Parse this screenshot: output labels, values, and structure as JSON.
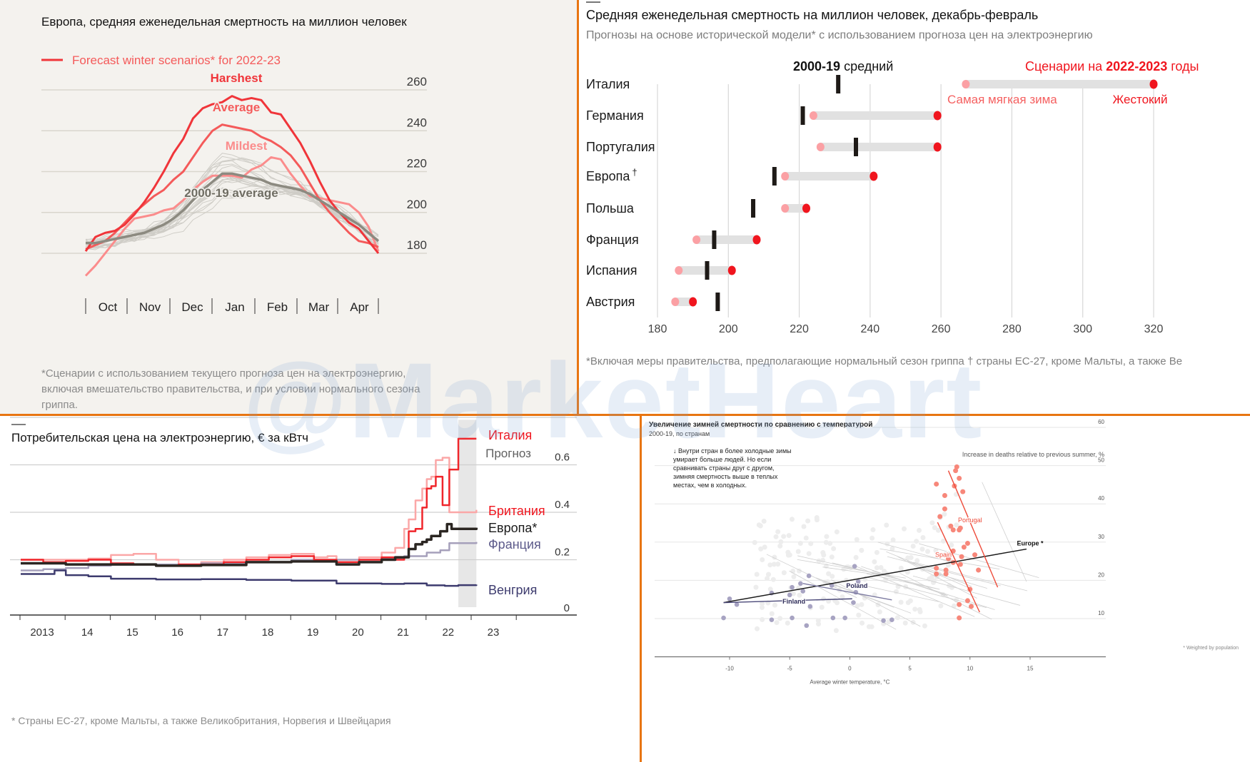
{
  "watermark": "@MarketHeart",
  "panels": {
    "mortality_curve": {
      "title": "Европа, средняя еженедельная смертность на миллион человек",
      "legend_label": "Forecast winter scenarios* for 2022-23",
      "footnote": [
        "*Сценарии с использованием текущего прогноза цен на электроэнергию,",
        "включая вмешательство правительства, и при условии нормального сезона",
        "гриппа."
      ]
    },
    "country_range": {
      "title": "Средняя еженедельная смертность на миллион человек, декабрь-февраль",
      "subtitle": "Прогнозы на основе исторической модели* с использованием прогноза цен на электроэнергию",
      "legend_avg_bold": "2000-19",
      "legend_avg_rest": " средний",
      "legend_scen_prefix": "Сценарии на ",
      "legend_scen_bold": "2022-2023",
      "legend_scen_suffix": " годы",
      "mildest_label": "Самая мягкая зима",
      "harshest_label": "Жестокий",
      "footnote": "*Включая меры правительства, предполагающие нормальный сезон гриппа † страны ЕС-27, кроме Мальты, а также Ве"
    },
    "electricity_price": {
      "title": "Потребительская цена на электроэнергию, € за кВтч",
      "forecast_label": "Прогноз",
      "footnote": "* Страны ЕС-27, кроме Мальты, а также Великобритания, Норвегия и Швейцария"
    },
    "temperature_scatter": {
      "title": "Увеличение зимней смертности по сравнению с температурой",
      "subtitle": "2000-19, по странам",
      "annotation": [
        "↓ Внутри стран в более холодные зимы",
        "умирает больше людей. Но если",
        "сравнивать страны друг с другом,",
        "зимняя смертность выше в теплых",
        "местах, чем в холодных."
      ],
      "weighted_note": "* Weighted by population"
    }
  },
  "chart_data": [
    {
      "type": "line",
      "title": "Европа, средняя еженедельная смертность на миллион человек",
      "xlabel": "",
      "ylabel": "",
      "x_ticks": [
        "Oct",
        "Nov",
        "Dec",
        "Jan",
        "Feb",
        "Mar",
        "Apr"
      ],
      "x_range_weeks": [
        0,
        30
      ],
      "yticks": [
        180,
        200,
        220,
        240,
        260
      ],
      "ylim": [
        170,
        265
      ],
      "grid": true,
      "series": [
        {
          "name": "Harshest",
          "color": "#f0353a",
          "values": [
            181,
            188,
            190,
            191,
            194,
            199,
            205,
            212,
            220,
            229,
            236,
            246,
            251,
            253,
            254,
            257,
            255,
            256,
            255,
            249,
            248,
            241,
            234,
            225,
            215,
            206,
            200,
            195,
            192,
            186,
            180
          ]
        },
        {
          "name": "Average",
          "color": "#f45a5a",
          "values": [
            182,
            184,
            186,
            190,
            195,
            200,
            204,
            208,
            211,
            216,
            220,
            227,
            234,
            240,
            243,
            242,
            241,
            240,
            237,
            235,
            232,
            228,
            222,
            214,
            206,
            200,
            195,
            190,
            186,
            185,
            183
          ]
        },
        {
          "name": "Mildest",
          "color": "#fb8c8c",
          "values": [
            169,
            174,
            180,
            186,
            192,
            197,
            198,
            199,
            201,
            202,
            206,
            211,
            215,
            218,
            218,
            218,
            217,
            221,
            223,
            227,
            226,
            219,
            213,
            208,
            207,
            206,
            205,
            204,
            200,
            193,
            181
          ]
        },
        {
          "name": "2000-19 average",
          "color": "#8c8a80",
          "values": [
            185,
            185,
            186,
            187,
            188,
            189,
            190,
            192,
            194,
            197,
            201,
            206,
            211,
            215,
            219,
            219,
            218,
            217,
            216,
            214,
            213,
            212,
            211,
            209,
            206,
            203,
            200,
            197,
            194,
            190,
            186
          ]
        }
      ],
      "series_labels": [
        "Harshest",
        "Average",
        "Mildest",
        "2000-19 average"
      ],
      "background_years": "thin grey lines, individual winters 2000-19"
    },
    {
      "type": "dumbbell",
      "title": "Средняя еженедельная смертность на миллион человек, декабрь-февраль",
      "xlim": [
        180,
        320
      ],
      "xticks": [
        180,
        200,
        220,
        240,
        260,
        280,
        300,
        320
      ],
      "grid": true,
      "rows": [
        {
          "country": "Италия",
          "avg_2000_19": 231,
          "mildest": 267,
          "harshest": 320
        },
        {
          "country": "Германия",
          "avg_2000_19": 221,
          "mildest": 224,
          "harshest": 259
        },
        {
          "country": "Португалия",
          "avg_2000_19": 236,
          "mildest": 226,
          "harshest": 259
        },
        {
          "country": "Европа",
          "country_suffix": "†",
          "avg_2000_19": 213,
          "mildest": 216,
          "harshest": 241
        },
        {
          "country": "Польша",
          "avg_2000_19": 207,
          "mildest": 216,
          "harshest": 222
        },
        {
          "country": "Франция",
          "avg_2000_19": 196,
          "mildest": 191,
          "harshest": 208
        },
        {
          "country": "Испания",
          "avg_2000_19": 194,
          "mildest": 186,
          "harshest": 201
        },
        {
          "country": "Австрия",
          "avg_2000_19": 197,
          "mildest": 185,
          "harshest": 190
        }
      ],
      "legend": [
        "2000-19 средний",
        "Сценарии на 2022-2023 годы",
        "Самая мягкая зима",
        "Жестокий"
      ]
    },
    {
      "type": "line",
      "title": "Потребительская цена на электроэнергию, € за кВтч",
      "xlabel": "",
      "ylabel": "€ за кВтч",
      "x_ticks": [
        "2013",
        "14",
        "15",
        "16",
        "17",
        "18",
        "19",
        "20",
        "21",
        "22",
        "23"
      ],
      "xlim": [
        2012.8,
        2024.2
      ],
      "ylim": [
        0,
        0.8
      ],
      "yticks": [
        0,
        0.2,
        0.4,
        0.6,
        0.8
      ],
      "grid": true,
      "forecast_region": [
        2022.7,
        2023.1
      ],
      "series": [
        {
          "name": "Италия",
          "color": "#f0262b",
          "x": [
            2013,
            2013.5,
            2014,
            2014.5,
            2015,
            2015.5,
            2016,
            2016.5,
            2017,
            2017.5,
            2018,
            2018.5,
            2019,
            2019.5,
            2020,
            2020.5,
            2021,
            2021.3,
            2021.5,
            2021.6,
            2021.75,
            2021.9,
            2022.0,
            2022.1,
            2022.2,
            2022.35,
            2022.5,
            2022.7,
            2023.1
          ],
          "values": [
            0.2,
            0.19,
            0.195,
            0.2,
            0.185,
            0.18,
            0.175,
            0.18,
            0.18,
            0.19,
            0.2,
            0.21,
            0.215,
            0.2,
            0.19,
            0.2,
            0.21,
            0.2,
            0.21,
            0.32,
            0.33,
            0.42,
            0.5,
            0.51,
            0.55,
            0.43,
            0.58,
            0.71,
            0.71
          ]
        },
        {
          "name": "Британия",
          "color": "#fba7a7",
          "x": [
            2013,
            2014,
            2014.5,
            2015,
            2015.5,
            2016,
            2016.5,
            2017,
            2017.5,
            2018,
            2018.5,
            2019,
            2019.5,
            2019.8,
            2020,
            2020.5,
            2021,
            2021.3,
            2021.5,
            2021.6,
            2021.75,
            2021.9,
            2022.0,
            2022.1,
            2022.2,
            2022.35,
            2022.5,
            2022.7,
            2023.1
          ],
          "values": [
            0.2,
            0.2,
            0.205,
            0.22,
            0.225,
            0.2,
            0.18,
            0.19,
            0.2,
            0.21,
            0.22,
            0.225,
            0.21,
            0.215,
            0.19,
            0.21,
            0.23,
            0.25,
            0.33,
            0.37,
            0.45,
            0.5,
            0.54,
            0.55,
            0.62,
            0.63,
            0.4,
            0.4,
            0.41
          ]
        },
        {
          "name": "Европа*",
          "color": "#2b2622",
          "x": [
            2013,
            2014,
            2015,
            2016,
            2017,
            2018,
            2019,
            2020,
            2020.5,
            2021,
            2021.3,
            2021.5,
            2021.6,
            2021.75,
            2021.9,
            2022.0,
            2022.1,
            2022.3,
            2022.45,
            2022.55,
            2022.7,
            2023.1
          ],
          "values": [
            0.185,
            0.18,
            0.18,
            0.175,
            0.178,
            0.19,
            0.193,
            0.18,
            0.19,
            0.2,
            0.21,
            0.21,
            0.245,
            0.265,
            0.275,
            0.285,
            0.3,
            0.32,
            0.35,
            0.33,
            0.33,
            0.335
          ]
        },
        {
          "name": "Франция",
          "color": "#a6a0bb",
          "x": [
            2013,
            2013.5,
            2014,
            2014.5,
            2015,
            2016,
            2017,
            2018,
            2019,
            2020,
            2021,
            2021.5,
            2022,
            2022.3,
            2022.5,
            2022.7,
            2023.1
          ],
          "values": [
            0.155,
            0.16,
            0.165,
            0.175,
            0.18,
            0.18,
            0.185,
            0.19,
            0.2,
            0.2,
            0.205,
            0.215,
            0.23,
            0.24,
            0.27,
            0.27,
            0.275
          ]
        },
        {
          "name": "Венгрия",
          "color": "#3d3b6e",
          "x": [
            2013,
            2013.5,
            2013.75,
            2014,
            2014.5,
            2015,
            2016,
            2017,
            2018,
            2019,
            2020,
            2021,
            2021.5,
            2022,
            2022.4,
            2022.7,
            2023.1
          ],
          "values": [
            0.14,
            0.14,
            0.155,
            0.135,
            0.13,
            0.12,
            0.117,
            0.118,
            0.115,
            0.112,
            0.1,
            0.098,
            0.1,
            0.092,
            0.09,
            0.093,
            0.095
          ]
        }
      ]
    },
    {
      "type": "scatter",
      "title": "Увеличение зимней смертности по сравнению с температурой",
      "subtitle": "2000-19, по странам",
      "xlabel": "Average winter temperature, °C",
      "ylabel": "Increase in deaths relative to previous summer, %",
      "xlim": [
        -15,
        20
      ],
      "ylim": [
        0,
        60
      ],
      "xticks": [
        -10,
        -5,
        0,
        5,
        10,
        15
      ],
      "yticks": [
        10,
        20,
        30,
        40,
        50,
        60
      ],
      "grid": true,
      "trend_lines": [
        {
          "name": "Europe *",
          "from": [
            -10.5,
            12.5
          ],
          "to": [
            14.7,
            26.5
          ],
          "color": "#1a1a1a"
        },
        {
          "name": "Finland",
          "from": [
            -10.5,
            12.5
          ],
          "to": [
            0.2,
            13.5
          ],
          "color": "#4a4878"
        },
        {
          "name": "Poland",
          "from": [
            -3.9,
            17.5
          ],
          "to": [
            3.5,
            13.2
          ],
          "color": "#7c7aa0"
        },
        {
          "name": "Spain",
          "from": [
            7.3,
            33.5
          ],
          "to": [
            10.8,
            10.0
          ],
          "color": "#ee4b3a"
        },
        {
          "name": "Portugal",
          "from": [
            8.2,
            47
          ],
          "to": [
            12.3,
            16.5
          ],
          "color": "#ee4b3a"
        }
      ],
      "highlight_points": {
        "finland_poland": [
          [
            -10.5,
            8.5
          ],
          [
            -10,
            13.5
          ],
          [
            -9.4,
            12
          ],
          [
            -6.5,
            8
          ],
          [
            -6.5,
            15
          ],
          [
            -5,
            14.5
          ],
          [
            -4.8,
            16.5
          ],
          [
            -4.8,
            8.5
          ],
          [
            -4.1,
            17.5
          ],
          [
            -3.9,
            15.5
          ],
          [
            -3.6,
            6.5
          ],
          [
            -3.4,
            19.5
          ],
          [
            -3.3,
            11.5
          ],
          [
            -1.4,
            8.5
          ],
          [
            -1.5,
            17
          ],
          [
            -0.4,
            8.5
          ],
          [
            0.4,
            22
          ],
          [
            0.5,
            15.2
          ],
          [
            0.7,
            18
          ],
          [
            0.3,
            12.5
          ],
          [
            2.8,
            7.8
          ],
          [
            3.5,
            8
          ]
        ],
        "spain_portugal": [
          [
            7.2,
            43.5
          ],
          [
            7.9,
            40.5
          ],
          [
            7.9,
            37
          ],
          [
            7.5,
            35
          ],
          [
            8.4,
            32.5
          ],
          [
            8.6,
            31.5
          ],
          [
            9.1,
            31.5
          ],
          [
            8.6,
            26
          ],
          [
            8.2,
            24
          ],
          [
            8.6,
            23
          ],
          [
            7.2,
            21.5
          ],
          [
            8.0,
            21
          ],
          [
            8.0,
            20
          ],
          [
            7.2,
            20
          ],
          [
            8.8,
            47
          ],
          [
            8.9,
            48
          ],
          [
            9.1,
            45
          ],
          [
            8.7,
            43
          ],
          [
            9.4,
            41.5
          ],
          [
            9.2,
            32
          ],
          [
            9.8,
            28
          ],
          [
            9.5,
            27
          ],
          [
            9.3,
            24.5
          ],
          [
            9.2,
            22.5
          ],
          [
            10.4,
            25
          ],
          [
            10.7,
            21
          ],
          [
            10.0,
            16
          ],
          [
            9.8,
            13
          ],
          [
            9.1,
            12
          ],
          [
            10.1,
            11.5
          ],
          [
            9.1,
            8.5
          ]
        ]
      },
      "labels": [
        "Finland",
        "Poland",
        "Spain",
        "Portugal",
        "Europe *"
      ]
    }
  ]
}
